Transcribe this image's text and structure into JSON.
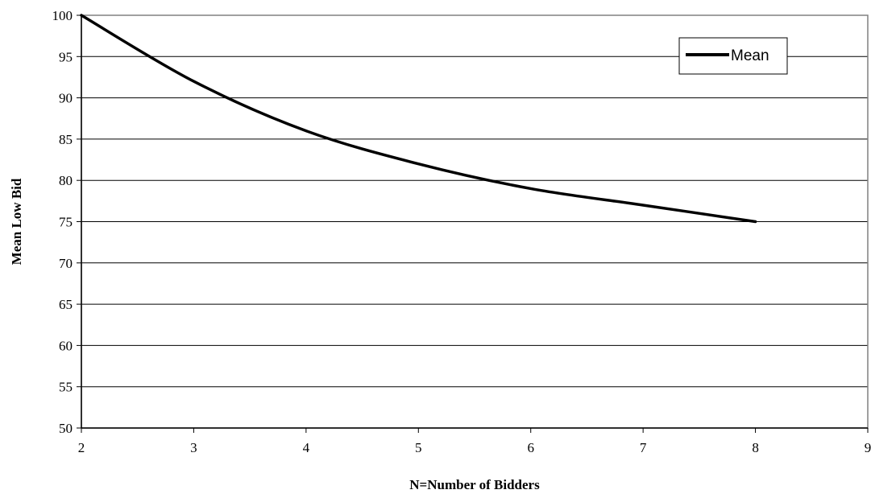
{
  "chart_data": {
    "type": "line",
    "title": "",
    "xlabel": "N=Number of Bidders",
    "ylabel": "Mean Low Bid",
    "xlim": [
      2,
      9
    ],
    "ylim": [
      50,
      100
    ],
    "x_ticks": [
      2,
      3,
      4,
      5,
      6,
      7,
      8,
      9
    ],
    "y_ticks": [
      50,
      55,
      60,
      65,
      70,
      75,
      80,
      85,
      90,
      95,
      100
    ],
    "grid": "horizontal",
    "legend": {
      "placement": "top-right",
      "entries": [
        "Mean"
      ]
    },
    "series": [
      {
        "name": "Mean",
        "color": "#000000",
        "x": [
          2,
          3,
          4,
          5,
          6,
          7,
          8
        ],
        "y": [
          100,
          92,
          86,
          82,
          79,
          77,
          75
        ]
      }
    ]
  }
}
